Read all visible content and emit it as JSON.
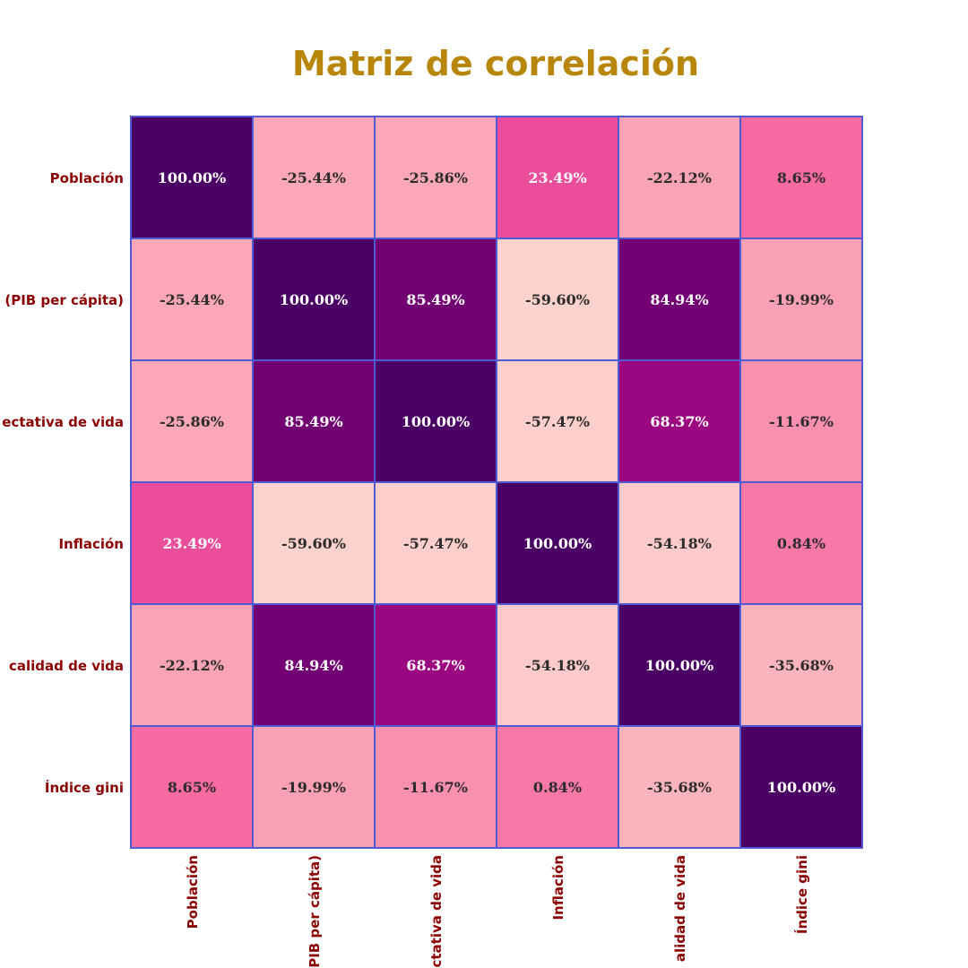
{
  "chart_data": {
    "type": "heatmap",
    "title": "Matriz de correlación",
    "row_labels": [
      "Población",
      "(PIB per cápita)",
      "ectativa de vida",
      "Inflación",
      "calidad de vida",
      "Índice gini"
    ],
    "col_labels": [
      "Población",
      "(PIB per cápita)",
      "ctativa de vida",
      "Inflación",
      "alidad de vida",
      "Índice gini"
    ],
    "values": [
      [
        100.0,
        -25.44,
        -25.86,
        23.49,
        -22.12,
        8.65
      ],
      [
        -25.44,
        100.0,
        85.49,
        -59.6,
        84.94,
        -19.99
      ],
      [
        -25.86,
        85.49,
        100.0,
        -57.47,
        68.37,
        -11.67
      ],
      [
        23.49,
        -59.6,
        -57.47,
        100.0,
        -54.18,
        0.84
      ],
      [
        -22.12,
        84.94,
        68.37,
        -54.18,
        100.0,
        -35.68
      ],
      [
        8.65,
        -19.99,
        -11.67,
        0.84,
        -35.68,
        100.0
      ]
    ],
    "value_labels": [
      [
        "100.00%",
        "-25.44%",
        "-25.86%",
        "23.49%",
        "-22.12%",
        "8.65%"
      ],
      [
        "-25.44%",
        "100.00%",
        "85.49%",
        "-59.60%",
        "84.94%",
        "-19.99%"
      ],
      [
        "-25.86%",
        "85.49%",
        "100.00%",
        "-57.47%",
        "68.37%",
        "-11.67%"
      ],
      [
        "23.49%",
        "-59.60%",
        "-57.47%",
        "100.00%",
        "-54.18%",
        "0.84%"
      ],
      [
        "-22.12%",
        "84.94%",
        "68.37%",
        "-54.18%",
        "100.00%",
        "-35.68%"
      ],
      [
        "8.65%",
        "-19.99%",
        "-11.67%",
        "0.84%",
        "-35.68%",
        "100.00%"
      ]
    ],
    "value_range": [
      -60,
      100
    ],
    "colormap": "RdPu",
    "colors": {
      "title": "#b8860b",
      "labels": "#8b0000",
      "cell_border": "#4f5bd5",
      "text_dark": "#2b2b2b",
      "text_light": "#ffffff"
    },
    "legend": "none",
    "grid": true
  }
}
